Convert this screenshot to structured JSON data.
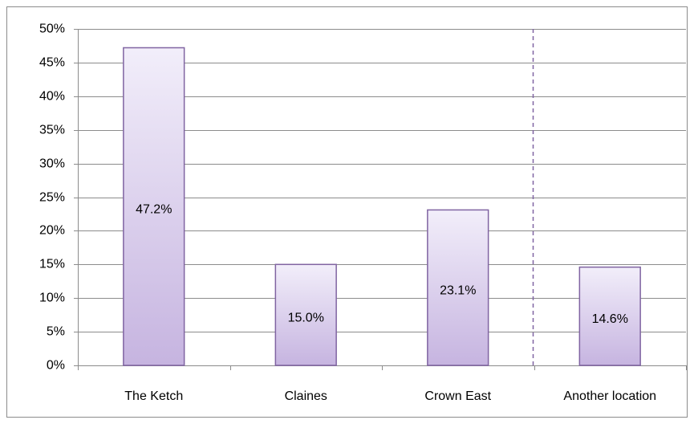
{
  "chart_data": {
    "type": "bar",
    "categories": [
      "The Ketch",
      "Claines",
      "Crown East",
      "Another location"
    ],
    "values": [
      47.2,
      15.0,
      23.1,
      14.6
    ],
    "value_labels": [
      "47.2%",
      "15.0%",
      "23.1%",
      "14.6%"
    ],
    "color": "#8064a2",
    "ylim": [
      0,
      50
    ],
    "yticks": [
      {
        "value": 0,
        "label": "0%"
      },
      {
        "value": 5,
        "label": "5%"
      },
      {
        "value": 10,
        "label": "10%"
      },
      {
        "value": 15,
        "label": "15%"
      },
      {
        "value": 20,
        "label": "20%"
      },
      {
        "value": 25,
        "label": "25%"
      },
      {
        "value": 30,
        "label": "30%"
      },
      {
        "value": 35,
        "label": "35%"
      },
      {
        "value": 40,
        "label": "40%"
      },
      {
        "value": 45,
        "label": "45%"
      },
      {
        "value": 50,
        "label": "50%"
      }
    ],
    "grid": true
  }
}
